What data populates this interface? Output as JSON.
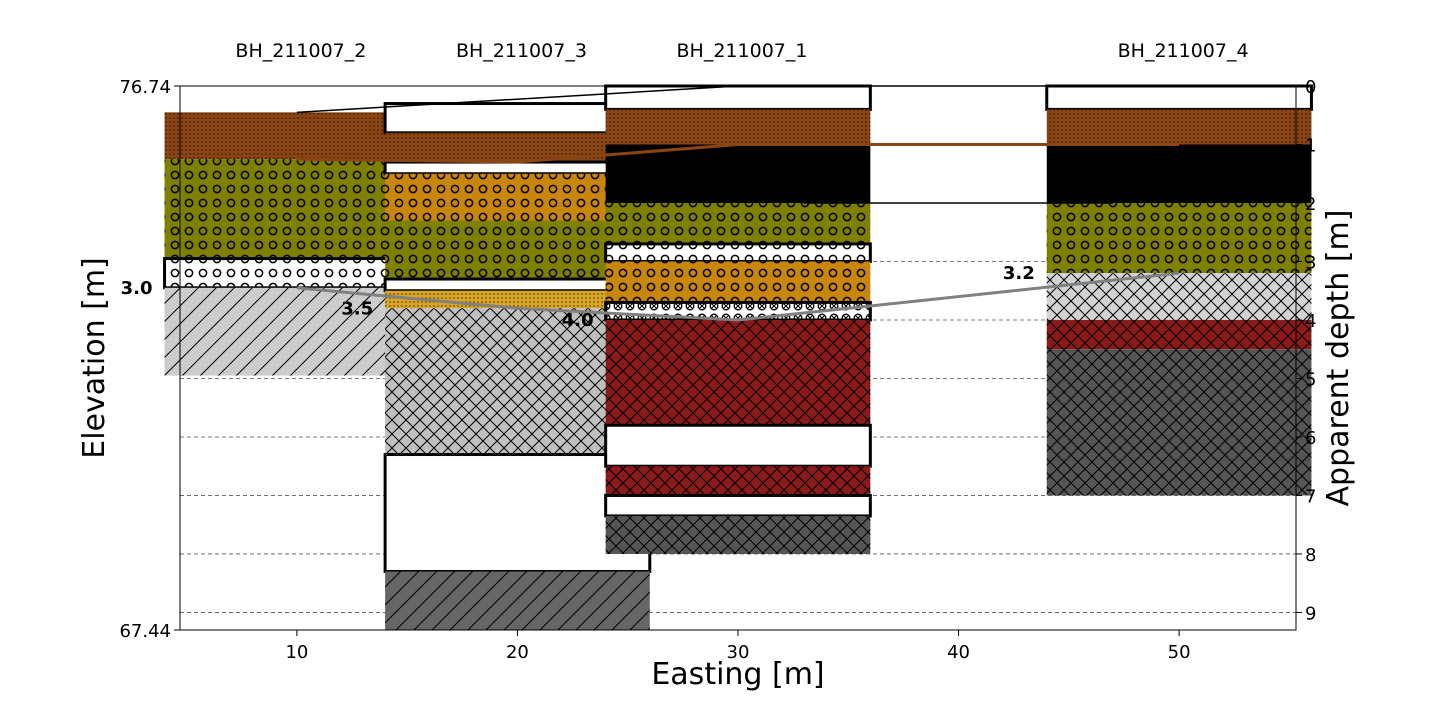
{
  "chart_data": {
    "type": "borehole-cross-section",
    "xlabel": "Easting [m]",
    "ylabel": "Elevation [m]",
    "y2label": "Apparent depth [m]",
    "xlim": [
      4.7,
      55.3
    ],
    "xticks": [
      10,
      20,
      30,
      40,
      50
    ],
    "ylim": [
      67.44,
      76.74
    ],
    "yticks_left": [
      67.44,
      76.74
    ],
    "yticks_left_labels": [
      "67.44",
      "76.74"
    ],
    "depthlim": [
      0,
      9.3
    ],
    "yticks_right": [
      0,
      1,
      2,
      3,
      4,
      5,
      6,
      7,
      8,
      9
    ],
    "grid": "horizontal-dashed",
    "boreholes": [
      {
        "name": "BH_211007_2",
        "x": 10,
        "layers": [
          {
            "top": 0.45,
            "bottom": 1.25,
            "fill": "#8b4513",
            "pattern": "dots"
          },
          {
            "top": 1.25,
            "bottom": 2.95,
            "fill": "#808000",
            "pattern": "circles"
          },
          {
            "top": 2.95,
            "bottom": 3.45,
            "fill": "#ffffff",
            "pattern": "circles",
            "outline": true
          },
          {
            "top": 3.45,
            "bottom": 4.95,
            "fill": "#cccccc",
            "pattern": "diag"
          }
        ]
      },
      {
        "name": "BH_211007_3",
        "x": 20,
        "layers": [
          {
            "top": 0.3,
            "bottom": 0.8,
            "fill": "#ffffff",
            "pattern": "none",
            "outline": true
          },
          {
            "top": 0.8,
            "bottom": 1.3,
            "fill": "#8b4513",
            "pattern": "dots"
          },
          {
            "top": 1.3,
            "bottom": 1.5,
            "fill": "#ffffff",
            "pattern": "none",
            "outline": true
          },
          {
            "top": 1.5,
            "bottom": 2.3,
            "fill": "#c8860b",
            "pattern": "circles"
          },
          {
            "top": 2.3,
            "bottom": 3.3,
            "fill": "#808000",
            "pattern": "circles"
          },
          {
            "top": 3.3,
            "bottom": 3.5,
            "fill": "#ffffff",
            "pattern": "none",
            "outline": true
          },
          {
            "top": 3.5,
            "bottom": 3.8,
            "fill": "#daa520",
            "pattern": "dots"
          },
          {
            "top": 3.8,
            "bottom": 6.3,
            "fill": "#c0c0c0",
            "pattern": "cross"
          },
          {
            "top": 6.3,
            "bottom": 8.3,
            "fill": "#ffffff",
            "pattern": "none",
            "outline": true
          },
          {
            "top": 8.3,
            "bottom": 9.3,
            "fill": "#666666",
            "pattern": "diag"
          }
        ]
      },
      {
        "name": "BH_211007_1",
        "x": 30,
        "layers": [
          {
            "top": 0.0,
            "bottom": 0.4,
            "fill": "#ffffff",
            "pattern": "none",
            "outline": true
          },
          {
            "top": 0.4,
            "bottom": 1.0,
            "fill": "#8b4513",
            "pattern": "dots"
          },
          {
            "top": 1.0,
            "bottom": 2.0,
            "fill": "#000000",
            "pattern": "none"
          },
          {
            "top": 2.0,
            "bottom": 2.7,
            "fill": "#808000",
            "pattern": "circles"
          },
          {
            "top": 2.7,
            "bottom": 3.0,
            "fill": "#ffffff",
            "pattern": "circles",
            "outline": true
          },
          {
            "top": 3.0,
            "bottom": 3.7,
            "fill": "#c8860b",
            "pattern": "circles"
          },
          {
            "top": 3.7,
            "bottom": 4.0,
            "fill": "#ffffff",
            "pattern": "xcircles",
            "outline": true
          },
          {
            "top": 4.0,
            "bottom": 5.8,
            "fill": "#8b1a1a",
            "pattern": "cross"
          },
          {
            "top": 5.8,
            "bottom": 6.5,
            "fill": "#ffffff",
            "pattern": "none",
            "outline": true
          },
          {
            "top": 6.5,
            "bottom": 7.0,
            "fill": "#8b1a1a",
            "pattern": "cross"
          },
          {
            "top": 7.0,
            "bottom": 7.35,
            "fill": "#ffffff",
            "pattern": "none",
            "outline": true
          },
          {
            "top": 7.35,
            "bottom": 8.0,
            "fill": "#555555",
            "pattern": "cross"
          }
        ]
      },
      {
        "name": "BH_211007_4",
        "x": 50,
        "layers": [
          {
            "top": 0.0,
            "bottom": 0.4,
            "fill": "#ffffff",
            "pattern": "none",
            "outline": true
          },
          {
            "top": 0.4,
            "bottom": 1.0,
            "fill": "#8b4513",
            "pattern": "dots"
          },
          {
            "top": 1.0,
            "bottom": 2.0,
            "fill": "#000000",
            "pattern": "none"
          },
          {
            "top": 2.0,
            "bottom": 3.2,
            "fill": "#808000",
            "pattern": "circles"
          },
          {
            "top": 3.2,
            "bottom": 4.0,
            "fill": "#d3d3d3",
            "pattern": "cross"
          },
          {
            "top": 4.0,
            "bottom": 4.5,
            "fill": "#8b1a1a",
            "pattern": "cross"
          },
          {
            "top": 4.5,
            "bottom": 7.0,
            "fill": "#555555",
            "pattern": "cross"
          }
        ]
      }
    ],
    "correlation_lines": [
      {
        "color": "#000000",
        "width": 1.5,
        "points": [
          [
            10,
            0.45
          ],
          [
            30,
            0.0
          ],
          [
            50,
            0.0
          ]
        ]
      },
      {
        "color": "#8b4513",
        "width": 3,
        "points": [
          [
            10,
            1.25
          ],
          [
            20,
            1.3
          ],
          [
            30,
            1.0
          ],
          [
            50,
            1.0
          ]
        ]
      },
      {
        "color": "#000000",
        "width": 1.5,
        "points": [
          [
            33,
            2.0
          ],
          [
            47,
            2.0
          ]
        ]
      },
      {
        "color": "#808080",
        "width": 3,
        "points": [
          [
            10,
            3.45
          ],
          [
            20,
            3.8
          ],
          [
            30,
            4.0
          ],
          [
            50,
            3.2
          ]
        ]
      }
    ],
    "depth_labels": [
      {
        "text": "3.0",
        "x": 10,
        "depth": 3.45
      },
      {
        "text": "3.5",
        "x": 20,
        "depth": 3.8
      },
      {
        "text": "4.0",
        "x": 30,
        "depth": 4.0
      },
      {
        "text": "3.2",
        "x": 50,
        "depth": 3.2
      }
    ]
  }
}
